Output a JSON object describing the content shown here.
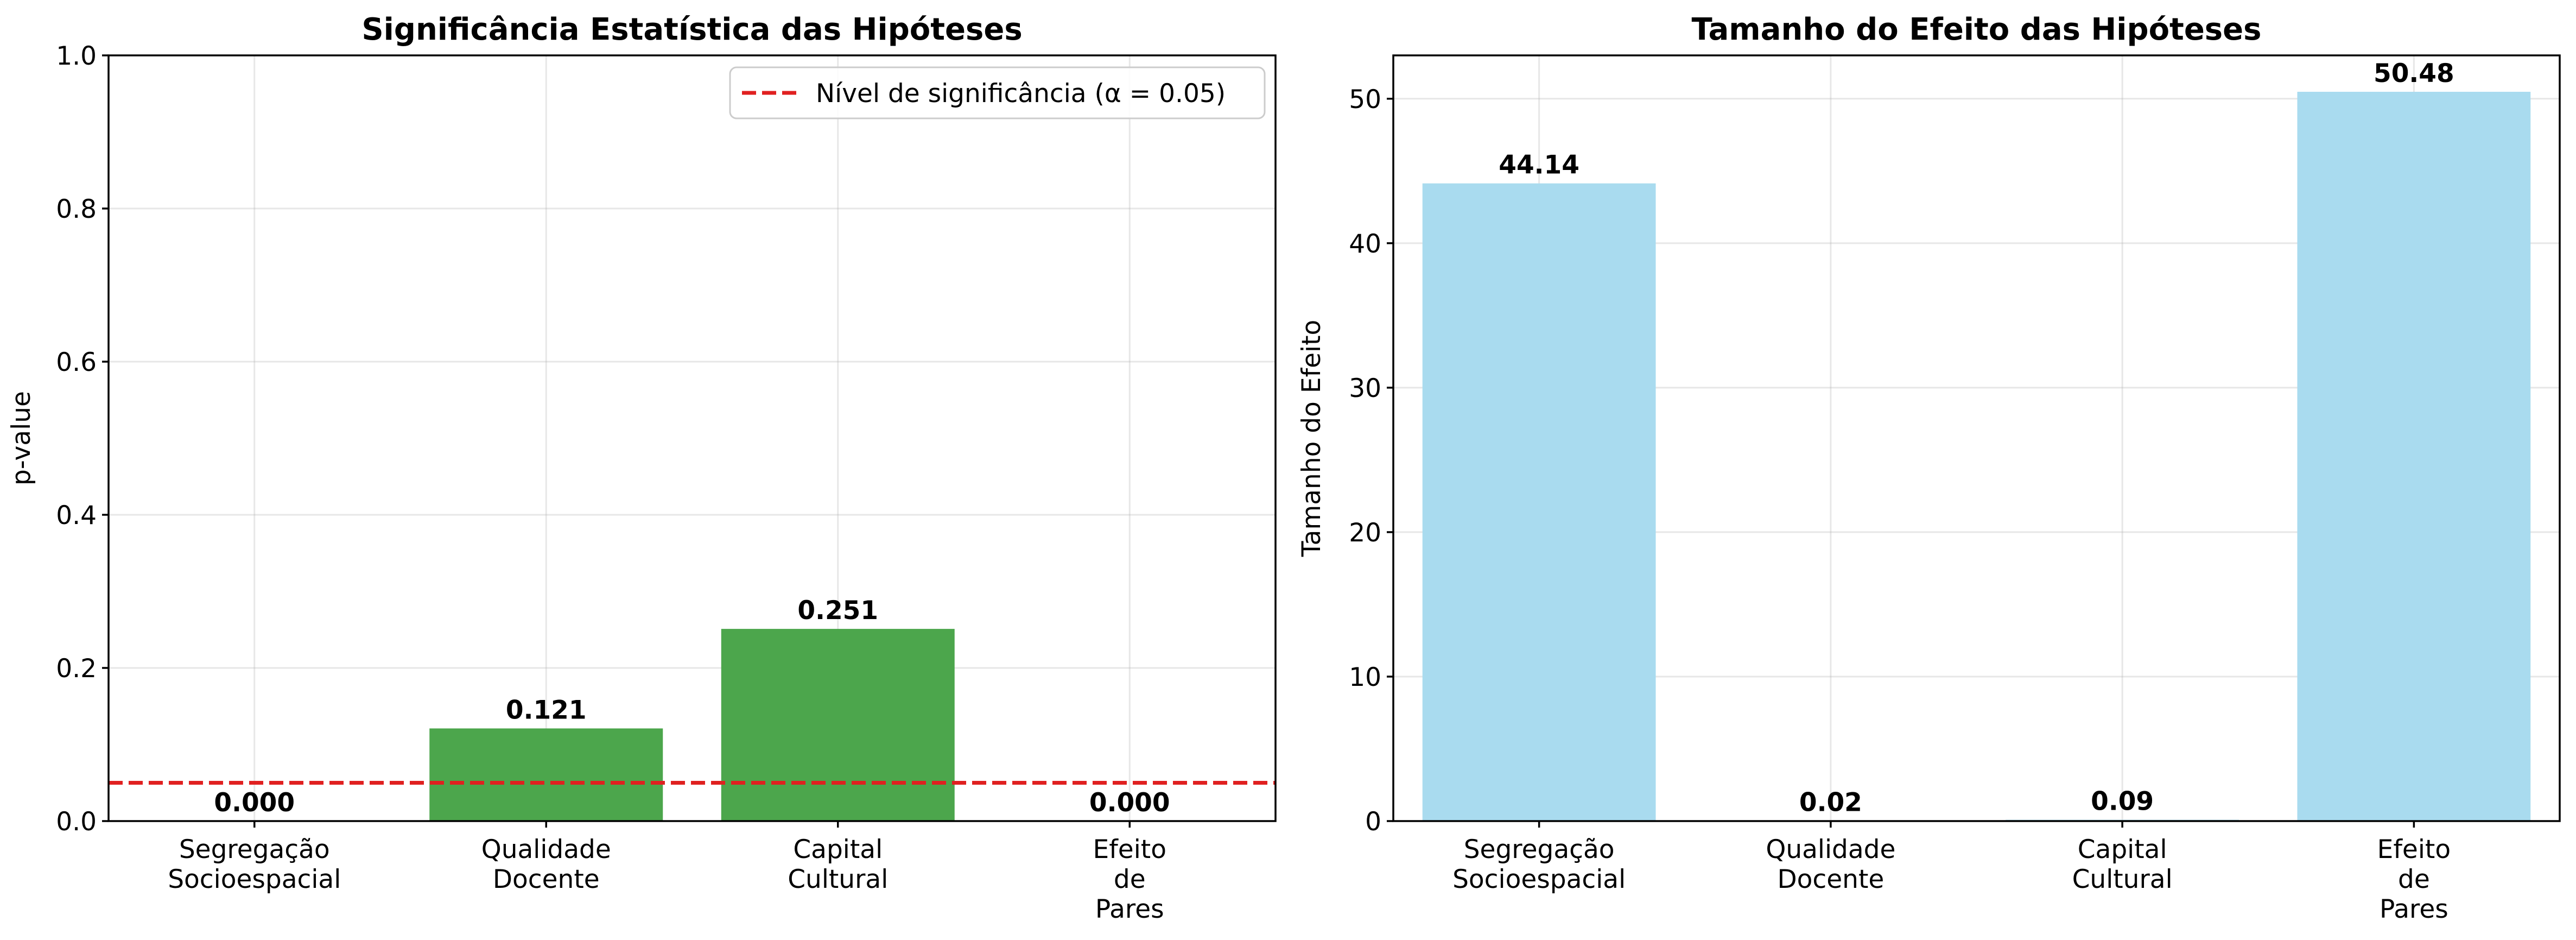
{
  "chart_data": [
    {
      "type": "bar",
      "title": "Significância Estatística das Hipóteses",
      "xlabel": "",
      "ylabel": "p-value",
      "categories": [
        "Segregação\nSocioespacial",
        "Qualidade\nDocente",
        "Capital\nCultural",
        "Efeito\nde\nPares"
      ],
      "values": [
        0.0,
        0.121,
        0.251,
        0.0
      ],
      "value_labels": [
        "0.000",
        "0.121",
        "0.251",
        "0.000"
      ],
      "ylim": [
        0,
        1.0
      ],
      "yticks": [
        0.0,
        0.2,
        0.4,
        0.6,
        0.8,
        1.0
      ],
      "ytick_labels": [
        "0.0",
        "0.2",
        "0.4",
        "0.6",
        "0.8",
        "1.0"
      ],
      "bar_color": "#4ca64c",
      "grid": true,
      "reference_line": {
        "value": 0.05,
        "label": "Nível de significância (α = 0.05)",
        "color": "#e02020",
        "style": "dashed"
      },
      "legend": {
        "placement": "top-right",
        "entries": [
          "Nível de significância (α = 0.05)"
        ]
      }
    },
    {
      "type": "bar",
      "title": "Tamanho do Efeito das Hipóteses",
      "xlabel": "",
      "ylabel": "Tamanho do Efeito",
      "categories": [
        "Segregação\nSocioespacial",
        "Qualidade\nDocente",
        "Capital\nCultural",
        "Efeito\nde\nPares"
      ],
      "values": [
        44.14,
        0.02,
        0.09,
        50.48
      ],
      "value_labels": [
        "44.14",
        "0.02",
        "0.09",
        "50.48"
      ],
      "ylim": [
        0,
        53
      ],
      "yticks": [
        0,
        10,
        20,
        30,
        40,
        50
      ],
      "ytick_labels": [
        "0",
        "10",
        "20",
        "30",
        "40",
        "50"
      ],
      "bar_color": "#a9dbef",
      "grid": true
    }
  ]
}
